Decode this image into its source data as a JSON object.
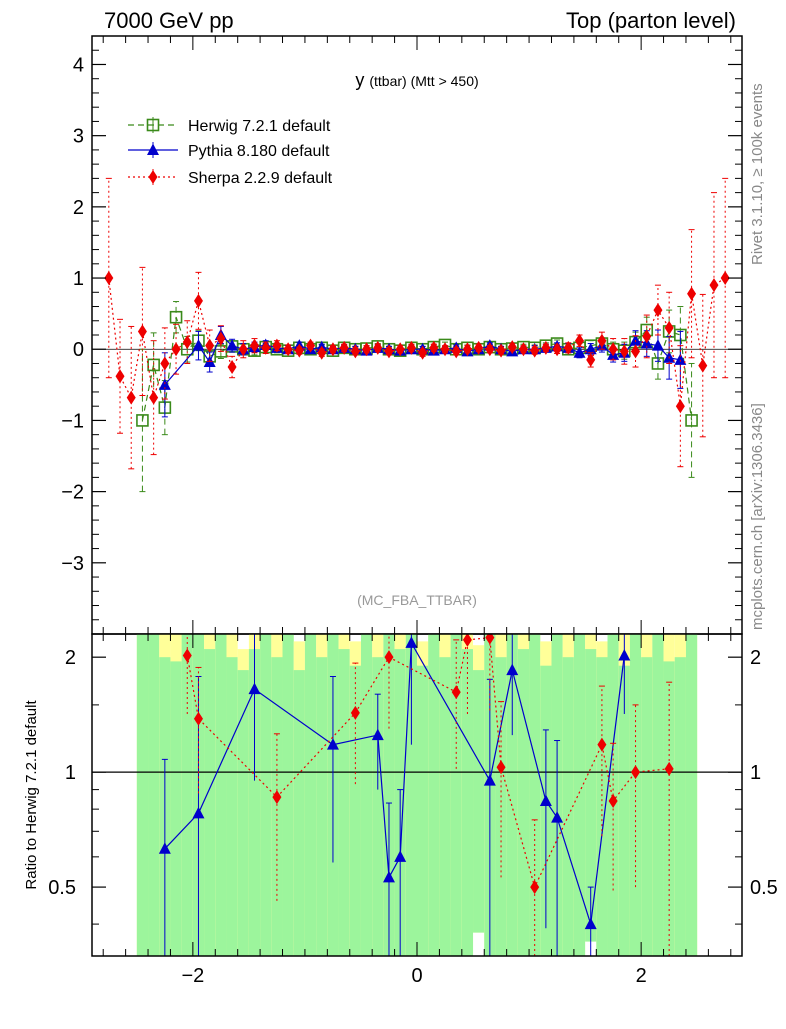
{
  "header": {
    "left": "7000 GeV pp",
    "right": "Top (parton level)"
  },
  "side_labels": {
    "rivet": "Rivet 3.1.10, ≥ 100k events",
    "mcplots": "mcplots.cern.ch [arXiv:1306.3436]"
  },
  "colors": {
    "herwig": "#3a8a1a",
    "pythia": "#0000cc",
    "sherpa": "#ee0000",
    "band_inner": "#9cf59c",
    "band_outer": "#ffff99"
  },
  "chart_data": [
    {
      "type": "scatter",
      "title_main": "y",
      "title_sub": "(ttbar) (Mtt > 450)",
      "watermark": "(MC_FBA_TTBAR)",
      "xlim": [
        -2.9,
        2.9
      ],
      "ylim": [
        -4.0,
        4.4
      ],
      "y_ticks": [
        "4",
        "3",
        "2",
        "1",
        "0",
        "−1",
        "−2",
        "−3"
      ],
      "y_tick_values": [
        4,
        3,
        2,
        1,
        0,
        -1,
        -2,
        -3
      ],
      "legend": [
        {
          "label": "Herwig 7.2.1 default",
          "series": "herwig"
        },
        {
          "label": "Pythia 8.180 default",
          "series": "pythia"
        },
        {
          "label": "Sherpa 2.2.9 default",
          "series": "sherpa"
        }
      ],
      "series": [
        {
          "name": "Herwig 7.2.1 default",
          "key": "herwig",
          "marker": "open-square",
          "line": "dashed",
          "x": [
            -2.45,
            -2.35,
            -2.25,
            -2.15,
            -2.05,
            -1.95,
            -1.85,
            -1.75,
            -1.65,
            -1.55,
            -1.45,
            -1.35,
            -1.25,
            -1.15,
            -1.05,
            -0.95,
            -0.85,
            -0.75,
            -0.65,
            -0.55,
            -0.45,
            -0.35,
            -0.25,
            -0.15,
            -0.05,
            0.05,
            0.15,
            0.25,
            0.35,
            0.45,
            0.55,
            0.65,
            0.75,
            0.85,
            0.95,
            1.05,
            1.15,
            1.25,
            1.35,
            1.45,
            1.55,
            1.65,
            1.75,
            1.85,
            1.95,
            2.05,
            2.15,
            2.25,
            2.35,
            2.45
          ],
          "y": [
            -1.0,
            -0.22,
            -0.82,
            0.45,
            0.0,
            0.12,
            -0.1,
            -0.03,
            0.04,
            0.0,
            -0.02,
            0.03,
            0.0,
            -0.02,
            0.02,
            0.0,
            0.02,
            -0.02,
            0.02,
            0.0,
            0.01,
            0.04,
            0.0,
            -0.02,
            0.02,
            0.0,
            0.03,
            0.06,
            0.0,
            0.02,
            0.0,
            0.03,
            0.0,
            0.01,
            0.03,
            0.02,
            0.05,
            0.08,
            0.0,
            0.02,
            0.05,
            0.08,
            0.0,
            -0.02,
            0.1,
            0.27,
            -0.2,
            0.25,
            0.2,
            -1.0
          ],
          "err": [
            1.0,
            0.45,
            0.38,
            0.22,
            0.18,
            0.14,
            0.12,
            0.1,
            0.08,
            0.07,
            0.06,
            0.05,
            0.05,
            0.04,
            0.04,
            0.04,
            0.04,
            0.04,
            0.04,
            0.04,
            0.04,
            0.04,
            0.04,
            0.04,
            0.04,
            0.04,
            0.04,
            0.04,
            0.04,
            0.04,
            0.04,
            0.04,
            0.04,
            0.04,
            0.04,
            0.04,
            0.04,
            0.05,
            0.05,
            0.06,
            0.07,
            0.08,
            0.1,
            0.12,
            0.14,
            0.18,
            0.22,
            0.3,
            0.4,
            0.8
          ]
        },
        {
          "name": "Pythia 8.180 default",
          "key": "pythia",
          "marker": "filled-triangle",
          "line": "solid",
          "x": [
            -2.25,
            -1.95,
            -1.85,
            -1.75,
            -1.65,
            -1.55,
            -1.45,
            -1.35,
            -1.25,
            -1.15,
            -1.05,
            -0.95,
            -0.85,
            -0.75,
            -0.65,
            -0.55,
            -0.45,
            -0.35,
            -0.25,
            -0.15,
            -0.05,
            0.05,
            0.15,
            0.25,
            0.35,
            0.45,
            0.55,
            0.65,
            0.75,
            0.85,
            0.95,
            1.05,
            1.15,
            1.25,
            1.35,
            1.45,
            1.55,
            1.65,
            1.75,
            1.85,
            1.95,
            2.05,
            2.15,
            2.25,
            2.35
          ],
          "y": [
            -0.5,
            0.05,
            -0.18,
            0.2,
            0.05,
            0.0,
            0.03,
            0.06,
            0.02,
            0.0,
            0.05,
            0.0,
            0.03,
            0.0,
            0.02,
            0.0,
            -0.02,
            0.02,
            0.0,
            -0.02,
            0.0,
            0.0,
            -0.02,
            0.0,
            0.02,
            -0.03,
            0.0,
            0.05,
            0.0,
            -0.03,
            0.0,
            0.0,
            0.02,
            0.04,
            0.02,
            -0.05,
            0.0,
            0.05,
            -0.08,
            -0.05,
            0.12,
            0.08,
            0.05,
            -0.12,
            -0.15
          ],
          "err": [
            0.45,
            0.2,
            0.14,
            0.12,
            0.09,
            0.08,
            0.07,
            0.06,
            0.05,
            0.05,
            0.05,
            0.04,
            0.04,
            0.04,
            0.04,
            0.04,
            0.04,
            0.04,
            0.04,
            0.04,
            0.04,
            0.04,
            0.04,
            0.04,
            0.04,
            0.04,
            0.04,
            0.04,
            0.04,
            0.04,
            0.04,
            0.05,
            0.05,
            0.05,
            0.06,
            0.07,
            0.08,
            0.09,
            0.1,
            0.12,
            0.14,
            0.18,
            0.22,
            0.3,
            0.4
          ]
        },
        {
          "name": "Sherpa 2.2.9 default",
          "key": "sherpa",
          "marker": "filled-diamond",
          "line": "dotted",
          "x": [
            -2.75,
            -2.65,
            -2.55,
            -2.45,
            -2.35,
            -2.25,
            -2.15,
            -2.05,
            -1.95,
            -1.85,
            -1.75,
            -1.65,
            -1.55,
            -1.45,
            -1.35,
            -1.25,
            -1.15,
            -1.05,
            -0.95,
            -0.85,
            -0.75,
            -0.65,
            -0.55,
            -0.45,
            -0.35,
            -0.25,
            -0.15,
            -0.05,
            0.05,
            0.15,
            0.25,
            0.35,
            0.45,
            0.55,
            0.65,
            0.75,
            0.85,
            0.95,
            1.05,
            1.15,
            1.25,
            1.35,
            1.45,
            1.55,
            1.65,
            1.75,
            1.85,
            1.95,
            2.05,
            2.15,
            2.25,
            2.35,
            2.45,
            2.55,
            2.65,
            2.75
          ],
          "y": [
            1.0,
            -0.38,
            -0.68,
            0.25,
            -0.68,
            -0.2,
            0.0,
            0.1,
            0.68,
            0.05,
            0.15,
            -0.25,
            0.0,
            0.05,
            0.02,
            0.05,
            0.0,
            -0.02,
            0.05,
            -0.05,
            0.0,
            0.02,
            -0.03,
            0.0,
            0.02,
            -0.03,
            0.0,
            0.02,
            -0.05,
            0.02,
            0.0,
            -0.03,
            0.0,
            0.02,
            0.0,
            -0.02,
            0.03,
            0.0,
            -0.02,
            0.02,
            0.0,
            0.02,
            0.12,
            -0.15,
            0.12,
            0.0,
            -0.03,
            -0.03,
            0.18,
            0.55,
            0.3,
            -0.8,
            0.78,
            -0.23,
            0.9,
            1.0
          ],
          "err": [
            1.4,
            0.8,
            1.0,
            0.9,
            0.8,
            0.5,
            0.35,
            0.3,
            0.4,
            0.22,
            0.18,
            0.15,
            0.12,
            0.1,
            0.08,
            0.07,
            0.06,
            0.05,
            0.05,
            0.05,
            0.05,
            0.05,
            0.05,
            0.05,
            0.05,
            0.05,
            0.05,
            0.05,
            0.05,
            0.05,
            0.05,
            0.05,
            0.05,
            0.05,
            0.05,
            0.05,
            0.05,
            0.05,
            0.05,
            0.05,
            0.06,
            0.07,
            0.08,
            0.1,
            0.12,
            0.15,
            0.18,
            0.22,
            0.3,
            0.35,
            0.5,
            0.85,
            0.9,
            1.0,
            1.3,
            1.4
          ]
        }
      ]
    },
    {
      "type": "line",
      "ylabel": "Ratio to Herwig 7.2.1 default",
      "xlim": [
        -2.9,
        2.9
      ],
      "ylim": [
        0.33,
        2.3
      ],
      "reference": 1.0,
      "x_ticks": [
        "−2",
        "0",
        "2"
      ],
      "x_tick_values": [
        -2,
        0,
        2
      ],
      "y_ticks": [
        "2",
        "1",
        "0.5"
      ],
      "y_tick_values": [
        2,
        1,
        0.5
      ],
      "band": {
        "x_edges": [
          -2.5,
          -2.4,
          -2.3,
          -2.2,
          -2.1,
          -2.0,
          -1.9,
          -1.8,
          -1.7,
          -1.6,
          -1.5,
          -1.4,
          -1.3,
          -1.2,
          -1.1,
          -1.0,
          -0.9,
          -0.8,
          -0.7,
          -0.6,
          -0.5,
          -0.4,
          -0.3,
          -0.2,
          -0.1,
          0.0,
          0.1,
          0.2,
          0.3,
          0.4,
          0.5,
          0.6,
          0.7,
          0.8,
          0.9,
          1.0,
          1.1,
          1.2,
          1.3,
          1.4,
          1.5,
          1.6,
          1.7,
          1.8,
          1.9,
          2.0,
          2.1,
          2.2,
          2.3,
          2.4,
          2.5
        ],
        "inner": [
          2.3,
          2.3,
          2.0,
          1.95,
          2.3,
          2.3,
          2.1,
          2.3,
          2.0,
          1.85,
          2.1,
          2.3,
          2.0,
          2.3,
          1.85,
          2.3,
          2.0,
          2.3,
          2.1,
          1.9,
          2.3,
          2.0,
          2.3,
          2.1,
          2.3,
          1.9,
          2.3,
          2.0,
          2.3,
          2.1,
          1.85,
          2.3,
          2.0,
          2.3,
          2.1,
          2.3,
          1.9,
          2.3,
          2.0,
          2.3,
          2.1,
          2.0,
          2.3,
          1.9,
          2.3,
          2.0,
          2.3,
          1.95,
          2.0,
          2.3
        ],
        "outer": [
          2.3,
          2.3,
          2.3,
          2.3,
          2.3,
          2.3,
          2.3,
          2.3,
          2.3,
          2.1,
          2.3,
          2.3,
          2.3,
          2.3,
          2.2,
          2.3,
          2.3,
          2.3,
          2.3,
          2.2,
          2.3,
          2.3,
          2.3,
          2.3,
          2.3,
          2.2,
          2.3,
          2.3,
          2.3,
          2.3,
          2.15,
          2.3,
          2.3,
          2.3,
          2.3,
          2.3,
          2.2,
          2.3,
          2.3,
          2.3,
          2.3,
          2.2,
          2.3,
          2.3,
          2.3,
          2.3,
          2.3,
          2.3,
          2.3,
          2.3
        ],
        "inner_low": [
          0.33,
          0.33,
          0.33,
          0.33,
          0.33,
          0.33,
          0.33,
          0.33,
          0.33,
          0.33,
          0.33,
          0.33,
          0.33,
          0.33,
          0.33,
          0.33,
          0.33,
          0.33,
          0.33,
          0.33,
          0.33,
          0.33,
          0.33,
          0.33,
          0.33,
          0.33,
          0.33,
          0.33,
          0.33,
          0.33,
          0.38,
          0.33,
          0.33,
          0.33,
          0.33,
          0.33,
          0.33,
          0.33,
          0.33,
          0.33,
          0.36,
          0.33,
          0.33,
          0.33,
          0.33,
          0.33,
          0.33,
          0.33,
          0.33,
          0.33
        ]
      },
      "series": [
        {
          "name": "Pythia 8.180 default",
          "key": "pythia",
          "x": [
            -2.25,
            -1.95,
            -1.45,
            -0.75,
            -0.35,
            -0.25,
            -0.15,
            -0.05,
            0.65,
            0.85,
            1.15,
            1.25,
            1.55,
            1.85
          ],
          "y": [
            0.63,
            0.78,
            1.65,
            1.18,
            1.25,
            0.53,
            0.6,
            2.18,
            0.95,
            1.85,
            0.84,
            0.76,
            0.4,
            2.02
          ],
          "err": [
            0.45,
            1.0,
            0.7,
            0.6,
            0.35,
            0.3,
            0.3,
            1.0,
            0.8,
            0.6,
            0.45,
            0.45,
            0.1,
            0.6
          ]
        },
        {
          "name": "Sherpa 2.2.9 default",
          "key": "sherpa",
          "x": [
            -2.05,
            -1.95,
            -1.25,
            -0.55,
            -0.25,
            0.35,
            0.45,
            0.65,
            0.75,
            1.05,
            1.65,
            1.75,
            1.95,
            2.25
          ],
          "y": [
            2.02,
            1.38,
            0.86,
            1.43,
            2.0,
            1.62,
            2.22,
            2.25,
            1.03,
            0.5,
            1.18,
            0.84,
            1.0,
            1.02
          ],
          "err": [
            0.6,
            0.5,
            0.4,
            0.5,
            0.7,
            0.6,
            0.8,
            0.8,
            0.5,
            0.25,
            0.5,
            0.35,
            0.5,
            0.7
          ]
        }
      ]
    }
  ]
}
